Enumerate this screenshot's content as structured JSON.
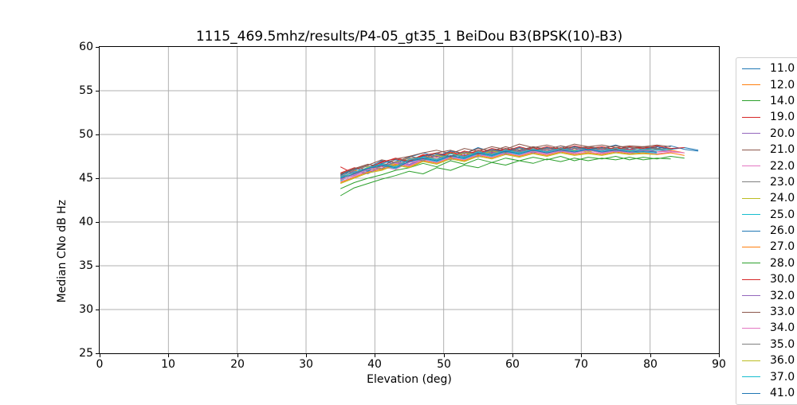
{
  "title": "1115_469.5mhz/results/P4-05_gt35_1 BeiDou B3(BPSK(10)-B3)",
  "axes": {
    "xlabel": "Elevation (deg)",
    "ylabel": "Median CNo dB Hz",
    "xticks": [
      0,
      10,
      20,
      30,
      40,
      50,
      60,
      70,
      80,
      90
    ],
    "yticks": [
      25,
      30,
      35,
      40,
      45,
      50,
      55,
      60
    ],
    "grid": true,
    "grid_color": "#b0b0b0",
    "spine_color": "#000000",
    "legend_border_color": "#d0d0d0"
  },
  "chart_data": {
    "type": "line",
    "title": "1115_469.5mhz/results/P4-05_gt35_1 BeiDou B3(BPSK(10)-B3)",
    "xlabel": "Elevation (deg)",
    "ylabel": "Median CNo dB Hz",
    "xlim": [
      0,
      90
    ],
    "ylim": [
      25,
      60
    ],
    "grid": true,
    "legend_position": "right-outside",
    "x_start": 35,
    "x_step": 2,
    "series": [
      {
        "name": "11.0",
        "color": "#1f77b4",
        "values": [
          45.5,
          45.7,
          46.2,
          47.0,
          46.6,
          47.4,
          47.9,
          47.5,
          48.1,
          47.8,
          48.5,
          48.0,
          48.4,
          48.1,
          48.6,
          48.3,
          48.7,
          48.2,
          48.6,
          48.4,
          48.8,
          48.3,
          48.6,
          48.4,
          48.7,
          48.3,
          48.1
        ]
      },
      {
        "name": "12.0",
        "color": "#ff7f0e",
        "values": [
          44.8,
          45.9,
          45.6,
          46.6,
          46.4,
          47.0,
          47.6,
          47.2,
          47.9,
          47.5,
          48.1,
          47.7,
          48.2,
          47.9,
          48.3,
          47.8,
          48.4,
          48.0,
          48.3,
          47.9,
          48.4,
          48.1,
          48.3,
          48.0,
          48.2,
          47.9
        ]
      },
      {
        "name": "14.0",
        "color": "#2ca02c",
        "values": [
          43.8,
          44.5,
          45.0,
          45.4,
          45.9,
          46.2,
          46.7,
          46.3,
          47.0,
          46.6,
          47.2,
          46.8,
          47.3,
          47.0,
          47.4,
          47.1,
          47.5,
          47.0,
          47.4,
          47.2,
          47.5,
          47.1,
          47.4,
          47.2,
          47.5,
          47.3
        ]
      },
      {
        "name": "19.0",
        "color": "#d62728",
        "values": [
          46.3,
          45.5,
          46.2,
          46.8,
          47.3,
          47.0,
          47.7,
          47.4,
          48.0,
          47.6,
          48.2,
          47.9,
          48.4,
          48.0,
          48.5,
          48.1,
          48.5,
          48.2,
          48.6,
          48.2,
          48.5,
          48.3,
          48.6,
          48.3,
          48.4
        ]
      },
      {
        "name": "20.0",
        "color": "#9467bd",
        "values": [
          44.9,
          45.3,
          46.0,
          46.3,
          46.9,
          46.6,
          47.3,
          47.0,
          47.6,
          47.3,
          47.9,
          47.6,
          48.1,
          47.8,
          48.2,
          47.9,
          48.3,
          48.0,
          48.2,
          48.0,
          48.3,
          48.1,
          48.2,
          48.0,
          48.1
        ]
      },
      {
        "name": "21.0",
        "color": "#8c564b",
        "values": [
          45.4,
          46.0,
          46.5,
          47.1,
          46.8,
          47.5,
          47.9,
          48.2,
          47.8,
          48.4,
          48.1,
          48.6,
          48.3,
          48.9,
          48.5,
          48.8,
          48.4,
          48.9,
          48.6,
          48.8,
          48.5,
          48.7,
          48.6,
          48.8,
          48.6
        ]
      },
      {
        "name": "22.0",
        "color": "#e377c2",
        "values": [
          44.6,
          45.2,
          45.8,
          46.1,
          46.7,
          46.4,
          47.1,
          46.8,
          47.4,
          47.1,
          47.7,
          47.4,
          47.9,
          47.6,
          48.0,
          47.7,
          48.1,
          47.8,
          48.0,
          47.8,
          48.1,
          47.9,
          48.0,
          47.8,
          48.0,
          47.9
        ]
      },
      {
        "name": "23.0",
        "color": "#7f7f7f",
        "values": [
          45.2,
          45.6,
          46.1,
          46.7,
          46.4,
          47.2,
          47.5,
          47.2,
          47.8,
          47.5,
          48.1,
          47.8,
          48.3,
          48.0,
          48.4,
          48.1,
          48.4,
          48.2,
          48.5,
          48.2,
          48.4,
          48.2,
          48.5,
          48.3,
          48.4
        ]
      },
      {
        "name": "24.0",
        "color": "#bcbd22",
        "values": [
          45.1,
          45.4,
          46.3,
          46.0,
          46.8,
          47.3,
          47.0,
          47.6,
          47.3,
          47.9,
          47.6,
          48.1,
          47.8,
          48.2,
          47.9,
          48.3,
          48.0,
          48.2,
          48.0,
          48.3,
          48.0,
          48.2,
          48.1,
          48.2
        ]
      },
      {
        "name": "25.0",
        "color": "#17becf",
        "values": [
          44.7,
          45.5,
          45.9,
          46.4,
          46.1,
          46.9,
          47.2,
          46.9,
          47.5,
          47.2,
          47.8,
          47.5,
          48.0,
          47.7,
          48.1,
          47.8,
          48.1,
          47.9,
          48.2,
          47.9,
          48.1,
          47.9,
          48.0,
          47.9
        ]
      },
      {
        "name": "26.0",
        "color": "#1f77b4",
        "values": [
          45.3,
          46.1,
          45.8,
          46.7,
          47.1,
          46.8,
          47.5,
          47.8,
          47.4,
          48.0,
          47.7,
          48.3,
          48.0,
          48.5,
          48.1,
          48.5,
          48.2,
          48.6,
          48.3,
          48.5,
          48.2,
          48.5,
          48.3,
          48.6,
          48.3,
          48.5,
          48.2
        ]
      },
      {
        "name": "27.0",
        "color": "#ff7f0e",
        "values": [
          44.5,
          45.1,
          45.7,
          46.0,
          46.6,
          46.3,
          47.0,
          46.7,
          47.3,
          47.0,
          47.6,
          47.3,
          47.8,
          47.5,
          47.9,
          47.6,
          48.0,
          47.7,
          47.9,
          47.7,
          48.0,
          47.8,
          47.9,
          47.7,
          47.9,
          47.6
        ]
      },
      {
        "name": "28.0",
        "color": "#2ca02c",
        "values": [
          43.0,
          43.9,
          44.4,
          44.9,
          45.3,
          45.8,
          45.5,
          46.2,
          45.9,
          46.5,
          46.2,
          46.8,
          46.5,
          47.0,
          46.7,
          47.2,
          46.9,
          47.3,
          47.0,
          47.3,
          47.1,
          47.4,
          47.1,
          47.3,
          47.2
        ]
      },
      {
        "name": "30.0",
        "color": "#d62728",
        "values": [
          45.6,
          46.2,
          46.0,
          46.9,
          47.2,
          46.9,
          47.6,
          47.9,
          47.5,
          48.1,
          47.8,
          48.4,
          48.1,
          48.6,
          48.2,
          48.6,
          48.3,
          48.7,
          48.4,
          48.6,
          48.3,
          48.6,
          48.4,
          48.7,
          48.4,
          48.5
        ]
      },
      {
        "name": "32.0",
        "color": "#9467bd",
        "values": [
          45.0,
          45.8,
          45.5,
          46.4,
          46.8,
          46.5,
          47.2,
          47.5,
          47.1,
          47.7,
          47.4,
          48.0,
          47.7,
          48.2,
          47.9,
          48.3,
          48.0,
          48.4,
          48.1,
          48.3,
          48.0,
          48.3,
          48.1,
          48.2,
          48.1
        ]
      },
      {
        "name": "33.0",
        "color": "#8c564b",
        "values": [
          45.5,
          46.1,
          46.6,
          46.3,
          47.2,
          47.5,
          47.2,
          47.9,
          48.2,
          47.8,
          48.4,
          48.1,
          48.6,
          48.2,
          48.6,
          48.3,
          48.7,
          48.4,
          48.6,
          48.4,
          48.7,
          48.5,
          48.6,
          48.5
        ]
      },
      {
        "name": "34.0",
        "color": "#e377c2",
        "values": [
          44.8,
          45.4,
          46.0,
          46.3,
          46.0,
          46.8,
          47.1,
          46.8,
          47.4,
          47.1,
          47.7,
          47.4,
          47.9,
          47.6,
          48.1,
          47.8,
          48.1,
          47.9,
          48.2,
          47.9,
          48.1,
          47.9,
          48.2,
          48.0,
          48.1,
          47.9
        ]
      },
      {
        "name": "35.0",
        "color": "#7f7f7f",
        "values": [
          45.2,
          45.9,
          46.4,
          46.1,
          46.9,
          47.3,
          47.0,
          47.7,
          47.4,
          48.0,
          47.7,
          48.2,
          47.9,
          48.4,
          48.1,
          48.4,
          48.2,
          48.5,
          48.2,
          48.4,
          48.2,
          48.5,
          48.3,
          48.4,
          48.3
        ]
      },
      {
        "name": "36.0",
        "color": "#bcbd22",
        "values": [
          44.4,
          45.0,
          45.6,
          45.9,
          46.5,
          46.2,
          46.9,
          46.6,
          47.2,
          46.9,
          47.5,
          47.2,
          47.7,
          47.4,
          47.8,
          47.5,
          47.9,
          47.6,
          47.8,
          47.6,
          47.9,
          47.7,
          47.8,
          47.7
        ]
      },
      {
        "name": "37.0",
        "color": "#17becf",
        "values": [
          45.1,
          45.7,
          46.2,
          46.6,
          46.3,
          47.1,
          47.4,
          47.1,
          47.8,
          47.4,
          48.0,
          47.7,
          48.2,
          47.9,
          48.3,
          48.0,
          48.4,
          48.1,
          48.3,
          48.1,
          48.4,
          48.1,
          48.3,
          48.2,
          48.3
        ]
      },
      {
        "name": "41.0",
        "color": "#1f77b4",
        "values": [
          45.0,
          45.5,
          46.1,
          46.5,
          46.2,
          46.9,
          47.3,
          47.0,
          47.6,
          47.3,
          47.9,
          47.6,
          48.1,
          47.8,
          48.2,
          47.9,
          48.2,
          48.0,
          48.3,
          48.0,
          48.2,
          48.0,
          48.1,
          48.0
        ]
      }
    ]
  }
}
